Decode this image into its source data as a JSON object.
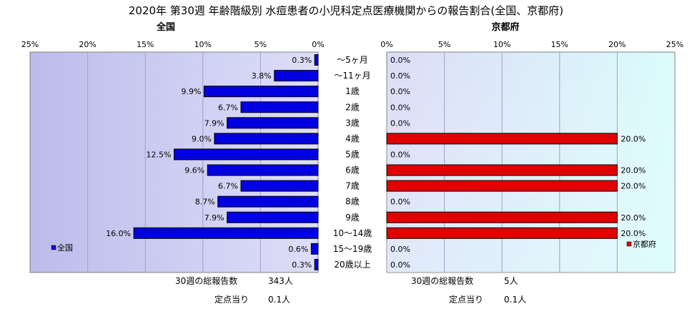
{
  "title": "2020年 第30週 年齢階級別 水痘患者の小児科定点医療機関からの報告割合(全国、京都府)",
  "categories": [
    "～5ヶ月",
    "～11ヶ月",
    "1歳",
    "2歳",
    "3歳",
    "4歳",
    "5歳",
    "6歳",
    "7歳",
    "8歳",
    "9歳",
    "10～14歳",
    "15～19歳",
    "20歳以上"
  ],
  "chart_data": [
    {
      "type": "bar",
      "orientation": "horizontal",
      "direction": "right-to-left",
      "title": "全国",
      "categories": [
        "～5ヶ月",
        "～11ヶ月",
        "1歳",
        "2歳",
        "3歳",
        "4歳",
        "5歳",
        "6歳",
        "7歳",
        "8歳",
        "9歳",
        "10～14歳",
        "15～19歳",
        "20歳以上"
      ],
      "series": [
        {
          "name": "全国",
          "color": "#0000e0",
          "values": [
            0.3,
            3.8,
            9.9,
            6.7,
            7.9,
            9.0,
            12.5,
            9.6,
            6.7,
            8.7,
            7.9,
            16.0,
            0.6,
            0.3
          ]
        }
      ],
      "value_labels": [
        "0.3%",
        "3.8%",
        "9.9%",
        "6.7%",
        "7.9%",
        "9.0%",
        "12.5%",
        "9.6%",
        "6.7%",
        "8.7%",
        "7.9%",
        "16.0%",
        "0.6%",
        "0.3%"
      ],
      "xlim": [
        0,
        25
      ],
      "ticks": [
        25,
        20,
        15,
        10,
        5,
        0
      ],
      "tick_labels": [
        "25%",
        "20%",
        "15%",
        "10%",
        "5%",
        "0%"
      ],
      "legend": {
        "label": "全国",
        "position": "bottom-left"
      },
      "background": "gradient lavender",
      "grid": true,
      "footer": {
        "total_label": "30週の総報告数",
        "total_value": "343人",
        "per_label": "定点当り",
        "per_value": "0.1人"
      }
    },
    {
      "type": "bar",
      "orientation": "horizontal",
      "direction": "left-to-right",
      "title": "京都府",
      "categories": [
        "～5ヶ月",
        "～11ヶ月",
        "1歳",
        "2歳",
        "3歳",
        "4歳",
        "5歳",
        "6歳",
        "7歳",
        "8歳",
        "9歳",
        "10～14歳",
        "15～19歳",
        "20歳以上"
      ],
      "series": [
        {
          "name": "京都府",
          "color": "#e00000",
          "values": [
            0.0,
            0.0,
            0.0,
            0.0,
            0.0,
            20.0,
            0.0,
            20.0,
            20.0,
            0.0,
            20.0,
            20.0,
            0.0,
            0.0
          ]
        }
      ],
      "value_labels": [
        "0.0%",
        "0.0%",
        "0.0%",
        "0.0%",
        "0.0%",
        "20.0%",
        "0.0%",
        "20.0%",
        "20.0%",
        "0.0%",
        "20.0%",
        "20.0%",
        "0.0%",
        "0.0%"
      ],
      "xlim": [
        0,
        25
      ],
      "ticks": [
        0,
        5,
        10,
        15,
        20,
        25
      ],
      "tick_labels": [
        "0%",
        "5%",
        "10%",
        "15%",
        "20%",
        "25%"
      ],
      "legend": {
        "label": "京都府",
        "position": "bottom-right"
      },
      "background": "gradient lavender to cyan",
      "grid": true,
      "footer": {
        "total_label": "30週の総報告数",
        "total_value": "5人",
        "per_label": "定点当り",
        "per_value": "0.1人"
      }
    }
  ]
}
